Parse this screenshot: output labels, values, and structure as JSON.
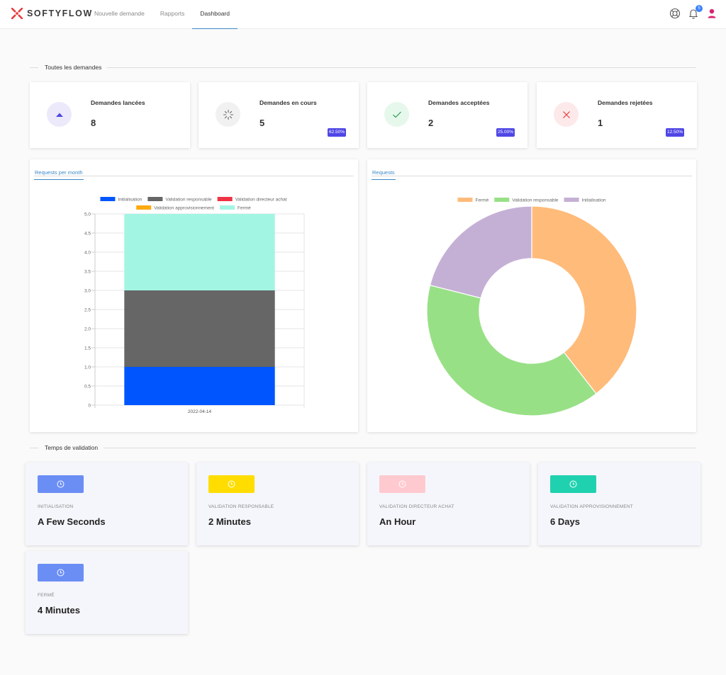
{
  "brand": {
    "name": "SOFTYFLOW",
    "color": "#e53e3e"
  },
  "nav": {
    "items": [
      {
        "label": "Nouvelle demande",
        "active": false
      },
      {
        "label": "Rapports",
        "active": false
      },
      {
        "label": "Dashboard",
        "active": true
      }
    ]
  },
  "header_icons": {
    "help_icon": "lifebuoy-icon",
    "notifications_icon": "bell-icon",
    "notifications_count": "5",
    "user_icon": "user-icon"
  },
  "sections": {
    "all_requests": "Toutes les demandes",
    "validation_time": "Temps de validation"
  },
  "stats": [
    {
      "label": "Demandes lancées",
      "value": "8",
      "percent": "",
      "icon": "arrow-up-icon",
      "icon_bg": "#ece9fb",
      "icon_color": "#4f46e5"
    },
    {
      "label": "Demandes en cours",
      "value": "5",
      "percent": "62.50%",
      "icon": "spinner-icon",
      "icon_bg": "#f1f1f1",
      "icon_color": "#666666"
    },
    {
      "label": "Demandes acceptées",
      "value": "2",
      "percent": "25.00%",
      "icon": "check-icon",
      "icon_bg": "#e6f8ec",
      "icon_color": "#2f9a55"
    },
    {
      "label": "Demandes rejetées",
      "value": "1",
      "percent": "12.50%",
      "icon": "close-icon",
      "icon_bg": "#fde9ea",
      "icon_color": "#e53e3e"
    }
  ],
  "chart_data": [
    {
      "type": "bar",
      "tab": "Requests per month",
      "stacked": true,
      "categories": [
        "2022-04-14"
      ],
      "series": [
        {
          "name": "Initialisation",
          "values": [
            1
          ],
          "color": "#0055ff"
        },
        {
          "name": "Validation responsable",
          "values": [
            2
          ],
          "color": "#666666"
        },
        {
          "name": "Validation directeur achat",
          "values": [
            0
          ],
          "color": "#ee3344"
        },
        {
          "name": "Validation approvisionnement",
          "values": [
            0
          ],
          "color": "#ffaa11"
        },
        {
          "name": "Fermé",
          "values": [
            2
          ],
          "color": "#a2f5e3"
        }
      ],
      "ylim": [
        0,
        5
      ],
      "yticks": [
        "0",
        "0.5",
        "1.0",
        "1.5",
        "2.0",
        "2.5",
        "3.0",
        "3.5",
        "4.0",
        "4.5",
        "5.0"
      ],
      "grid": true,
      "legend": "top"
    },
    {
      "type": "pie",
      "donut": true,
      "tab": "Requests",
      "series": [
        {
          "name": "Fermé",
          "value": 3,
          "color": "#ffbb7a"
        },
        {
          "name": "Validation responsable",
          "value": 3,
          "color": "#98e086"
        },
        {
          "name": "Initialisation",
          "value": 1.6,
          "color": "#c5b0d5"
        }
      ],
      "legend": "top"
    }
  ],
  "validation_times": [
    {
      "label": "INITIALISATION",
      "value": "A Few Seconds",
      "color": "#6b8ef5",
      "icon": "clock-icon"
    },
    {
      "label": "VALIDATION RESPONSABLE",
      "value": "2 Minutes",
      "color": "#ffdd00",
      "icon": "clock-icon"
    },
    {
      "label": "VALIDATION DIRECTEUR ACHAT",
      "value": "An Hour",
      "color": "#ffc9d0",
      "icon": "clock-icon"
    },
    {
      "label": "VALIDATION APPROVISIONNEMENT",
      "value": "6 Days",
      "color": "#20d1b0",
      "icon": "clock-icon"
    },
    {
      "label": "FERMÉ",
      "value": "4 Minutes",
      "color": "#6b8ef5",
      "icon": "clock-icon"
    }
  ]
}
